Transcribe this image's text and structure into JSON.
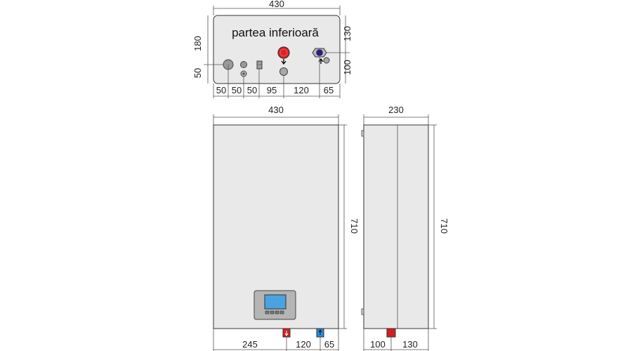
{
  "bottom_view": {
    "title": "partea inferioară",
    "width_label": "430",
    "height_label": "180",
    "left_label_50": "50",
    "right_label_130": "130",
    "right_label_100": "100",
    "bottom_labels": [
      "50",
      "50",
      "50",
      "95",
      "120",
      "65"
    ]
  },
  "front_view": {
    "width_label": "430",
    "height_label": "710",
    "bottom_labels": [
      "245",
      "120",
      "65"
    ]
  },
  "side_view": {
    "width_label": "230",
    "height_label": "710",
    "bottom_labels": [
      "100",
      "130"
    ]
  },
  "colors": {
    "hot_pipe": "#e02020",
    "cold_pipe": "#2a1f7a",
    "red_marker": "#d21f1f",
    "blue_marker": "#2a8ad6",
    "screen": "#4aa3e0"
  }
}
